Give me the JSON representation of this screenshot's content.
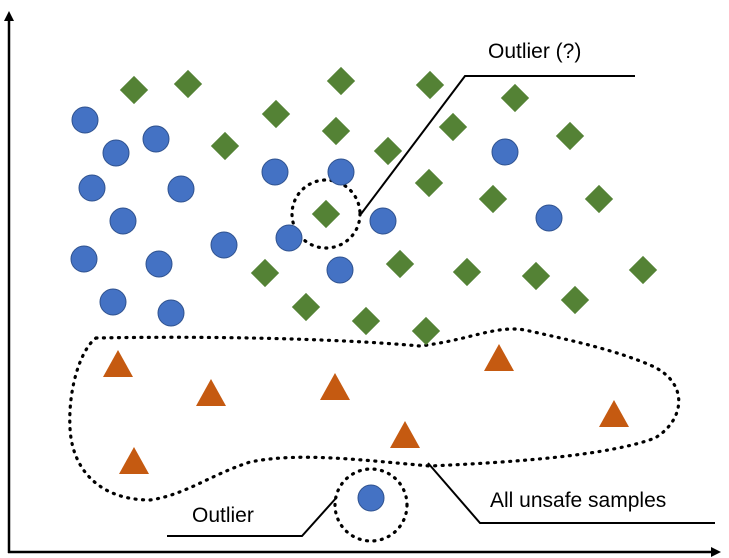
{
  "colors": {
    "circle": "#4472C4",
    "diamond": "#548235",
    "triangle": "#C55A11",
    "axis": "#000000"
  },
  "icons": {
    "circle": "blue-circle-sample",
    "diamond": "green-diamond-sample",
    "triangle": "orange-triangle-sample"
  },
  "labels": {
    "outlier_question": "Outlier (?)",
    "outlier": "Outlier",
    "unsafe_region": "All unsafe samples"
  }
}
